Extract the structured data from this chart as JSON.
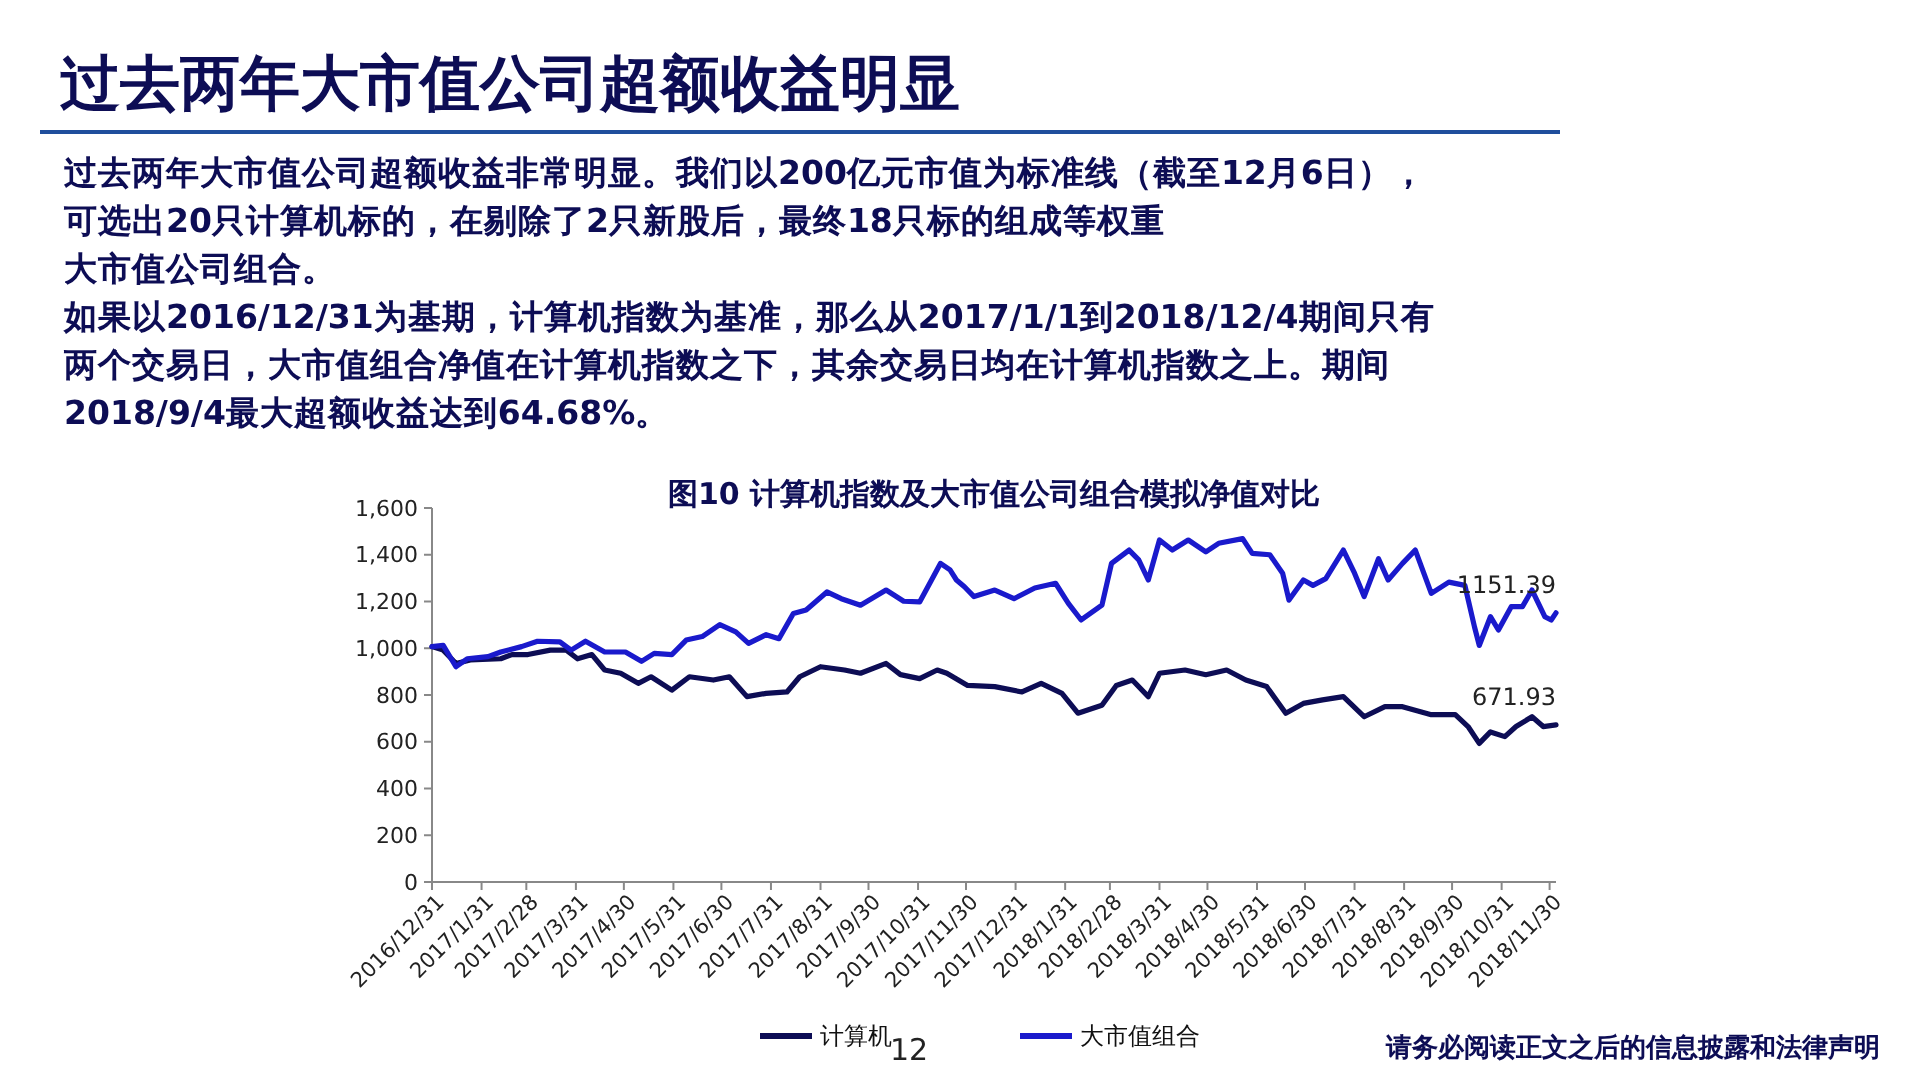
{
  "chart_data": {
    "type": "line",
    "title": "过去两年大市值公司超额收益明显",
    "subtitle": "图10 计算机指数及大市值公司组合模拟净值对比",
    "annotations": [
      "过去两年大市值公司超额收益非常明显。我们以200亿元市值为标准线（截至12月6日），",
      "可选出20只计算机标的，在剔除了2只新股后，最终18只标的组成等权重",
      "大市值公司组合。",
      "如果以2016/12/31为基期，计算机指数为基准，那么从2017/1/1到2018/12/4期间只有",
      "两个交易日，大市值组合净值在计算机指数之下，其余交易日均在计算机指数之上。期间",
      "2018/9/4最大超额收益达到64.68%。",
      {
        "text": "1151.39",
        "x": "2018-12-04",
        "y": 1151.39
      },
      {
        "text": "671.93",
        "x": "2018-12-04",
        "y": 671.93
      },
      "12",
      "请务必阅读正文之后的信息披露和法律声明"
    ],
    "xlim": [
      "2016-12-31",
      "2018-12-04"
    ],
    "xticks": [
      {
        "value": "2016-12-31",
        "label": "2016/12/31"
      },
      {
        "value": "2017-01-31",
        "label": "2017/1/31"
      },
      {
        "value": "2017-02-28",
        "label": "2017/2/28"
      },
      {
        "value": "2017-03-31",
        "label": "2017/3/31"
      },
      {
        "value": "2017-04-30",
        "label": "2017/4/30"
      },
      {
        "value": "2017-05-31",
        "label": "2017/5/31"
      },
      {
        "value": "2017-06-30",
        "label": "2017/6/30"
      },
      {
        "value": "2017-07-31",
        "label": "2017/7/31"
      },
      {
        "value": "2017-08-31",
        "label": "2017/8/31"
      },
      {
        "value": "2017-09-30",
        "label": "2017/9/30"
      },
      {
        "value": "2017-10-31",
        "label": "2017/10/31"
      },
      {
        "value": "2017-11-30",
        "label": "2017/11/30"
      },
      {
        "value": "2017-12-31",
        "label": "2017/12/31"
      },
      {
        "value": "2018-01-31",
        "label": "2018/1/31"
      },
      {
        "value": "2018-02-28",
        "label": "2018/2/28"
      },
      {
        "value": "2018-03-31",
        "label": "2018/3/31"
      },
      {
        "value": "2018-04-30",
        "label": "2018/4/30"
      },
      {
        "value": "2018-05-31",
        "label": "2018/5/31"
      },
      {
        "value": "2018-06-30",
        "label": "2018/6/30"
      },
      {
        "value": "2018-07-31",
        "label": "2018/7/31"
      },
      {
        "value": "2018-08-31",
        "label": "2018/8/31"
      },
      {
        "value": "2018-09-30",
        "label": "2018/9/30"
      },
      {
        "value": "2018-10-31",
        "label": "2018/10/31"
      },
      {
        "value": "2018-11-30",
        "label": "2018/11/30"
      }
    ],
    "ylim": [
      0,
      1600
    ],
    "yticks": [
      {
        "value": 0,
        "label": "0"
      },
      {
        "value": 200,
        "label": "200"
      },
      {
        "value": 400,
        "label": "400"
      },
      {
        "value": 600,
        "label": "600"
      },
      {
        "value": 800,
        "label": "800"
      },
      {
        "value": 1000,
        "label": "1,000"
      },
      {
        "value": 1200,
        "label": "1,200"
      },
      {
        "value": 1400,
        "label": "1,400"
      },
      {
        "value": 1600,
        "label": "1,600"
      }
    ],
    "grid": false,
    "legend": "bottom",
    "marker": "none",
    "line_style": "solid",
    "series": [
      {
        "name": "计算机",
        "color": "#0d0d55",
        "x": [
          "2016-12-31",
          "2017-01-07",
          "2017-01-15",
          "2017-01-24",
          "2017-02-12",
          "2017-02-19",
          "2017-03-01",
          "2017-03-15",
          "2017-03-25",
          "2017-04-01",
          "2017-04-10",
          "2017-04-18",
          "2017-04-28",
          "2017-05-09",
          "2017-05-17",
          "2017-05-30",
          "2017-06-10",
          "2017-06-25",
          "2017-07-05",
          "2017-07-16",
          "2017-07-28",
          "2017-08-10",
          "2017-08-18",
          "2017-08-31",
          "2017-09-15",
          "2017-09-25",
          "2017-10-11",
          "2017-10-20",
          "2017-11-01",
          "2017-11-12",
          "2017-11-18",
          "2017-12-01",
          "2017-12-18",
          "2018-01-04",
          "2018-01-16",
          "2018-01-29",
          "2018-02-08",
          "2018-02-23",
          "2018-03-04",
          "2018-03-14",
          "2018-03-24",
          "2018-03-31",
          "2018-04-16",
          "2018-04-29",
          "2018-05-12",
          "2018-05-24",
          "2018-06-06",
          "2018-06-18",
          "2018-06-29",
          "2018-07-11",
          "2018-07-24",
          "2018-08-06",
          "2018-08-19",
          "2018-08-30",
          "2018-09-17",
          "2018-10-02",
          "2018-10-10",
          "2018-10-17",
          "2018-10-24",
          "2018-11-02",
          "2018-11-09",
          "2018-11-19",
          "2018-11-26",
          "2018-12-04"
        ],
        "values": [
          1007,
          992,
          935,
          950,
          955,
          973,
          973,
          992,
          992,
          955,
          973,
          907,
          893,
          850,
          878,
          821,
          878,
          864,
          878,
          793,
          807,
          813,
          878,
          921,
          907,
          893,
          935,
          887,
          870,
          907,
          893,
          841,
          836,
          813,
          850,
          807,
          722,
          756,
          841,
          864,
          793,
          893,
          907,
          887,
          907,
          864,
          836,
          722,
          764,
          779,
          793,
          707,
          750,
          750,
          716,
          716,
          665,
          593,
          642,
          622,
          665,
          707,
          665,
          671.93
        ]
      },
      {
        "name": "大市值组合",
        "color": "#1a1acc",
        "x": [
          "2016-12-31",
          "2017-01-07",
          "2017-01-15",
          "2017-01-22",
          "2017-02-04",
          "2017-02-12",
          "2017-02-25",
          "2017-03-07",
          "2017-03-21",
          "2017-03-28",
          "2017-04-06",
          "2017-04-18",
          "2017-05-01",
          "2017-05-11",
          "2017-05-19",
          "2017-05-30",
          "2017-06-08",
          "2017-06-18",
          "2017-06-29",
          "2017-07-09",
          "2017-07-17",
          "2017-07-28",
          "2017-08-05",
          "2017-08-14",
          "2017-08-22",
          "2017-09-04",
          "2017-09-13",
          "2017-09-25",
          "2017-10-11",
          "2017-10-22",
          "2017-11-01",
          "2017-11-14",
          "2017-11-20",
          "2017-11-24",
          "2017-11-29",
          "2017-12-05",
          "2017-12-18",
          "2017-12-30",
          "2018-01-12",
          "2018-01-25",
          "2018-02-02",
          "2018-02-10",
          "2018-02-23",
          "2018-03-01",
          "2018-03-12",
          "2018-03-18",
          "2018-03-24",
          "2018-03-31",
          "2018-04-08",
          "2018-04-18",
          "2018-04-29",
          "2018-05-07",
          "2018-05-22",
          "2018-05-28",
          "2018-06-08",
          "2018-06-16",
          "2018-06-20",
          "2018-06-29",
          "2018-07-05",
          "2018-07-13",
          "2018-07-24",
          "2018-07-31",
          "2018-08-06",
          "2018-08-15",
          "2018-08-21",
          "2018-08-30",
          "2018-09-07",
          "2018-09-17",
          "2018-09-28",
          "2018-10-08",
          "2018-10-14",
          "2018-10-17",
          "2018-10-24",
          "2018-10-29",
          "2018-11-06",
          "2018-11-13",
          "2018-11-19",
          "2018-11-27",
          "2018-12-01",
          "2018-12-04"
        ],
        "values": [
          1007,
          1012,
          921,
          955,
          964,
          984,
          1007,
          1030,
          1027,
          992,
          1030,
          984,
          984,
          944,
          978,
          973,
          1035,
          1050,
          1101,
          1070,
          1021,
          1058,
          1041,
          1149,
          1164,
          1241,
          1212,
          1184,
          1249,
          1201,
          1198,
          1363,
          1335,
          1292,
          1263,
          1221,
          1249,
          1212,
          1258,
          1278,
          1192,
          1121,
          1184,
          1363,
          1420,
          1378,
          1292,
          1463,
          1420,
          1463,
          1412,
          1449,
          1469,
          1406,
          1400,
          1321,
          1206,
          1292,
          1269,
          1298,
          1420,
          1321,
          1221,
          1383,
          1292,
          1363,
          1420,
          1235,
          1283,
          1269,
          1092,
          1012,
          1135,
          1078,
          1178,
          1178,
          1249,
          1135,
          1121,
          1151.39
        ]
      }
    ]
  }
}
